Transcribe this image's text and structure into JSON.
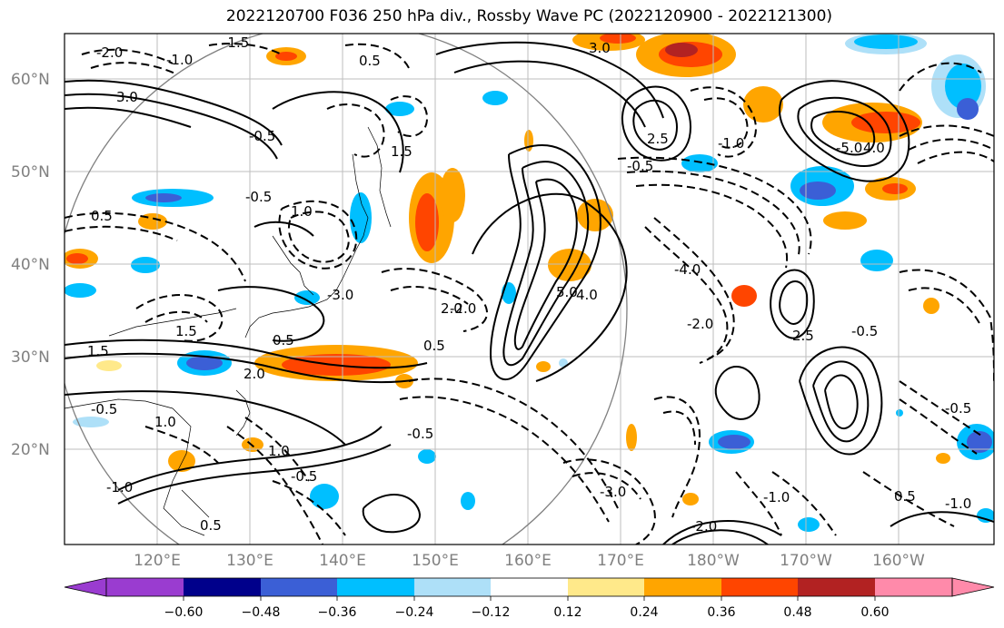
{
  "title": "2022120700 F036 250 hPa div., Rossby Wave PC (2022120900 - 2022121300)",
  "lat_labels": [
    "60°N",
    "50°N",
    "40°N",
    "30°N",
    "20°N"
  ],
  "lon_labels": [
    "120°E",
    "130°E",
    "140°E",
    "150°E",
    "160°E",
    "170°E",
    "180°W",
    "170°W",
    "160°W"
  ],
  "colorbar": {
    "tick_labels": [
      "−0.60",
      "−0.48",
      "−0.36",
      "−0.24",
      "−0.12",
      "0.12",
      "0.24",
      "0.36",
      "0.48",
      "0.60"
    ],
    "colors": [
      "#9a3cd0",
      "#00008b",
      "#3b5fd6",
      "#00bfff",
      "#aee0f8",
      "#ffffff",
      "#ffe98a",
      "#ffa500",
      "#ff4500",
      "#b22222",
      "#ff8aaa"
    ]
  },
  "contour_labels": [
    "-1.5",
    "-2.0",
    "-1.0",
    "0.5",
    "3.0",
    "-0.5",
    "1.5",
    "1.0",
    "2.0",
    "-4.0",
    "-3.0",
    "5.0",
    "4.0",
    "2.5",
    "-5.0"
  ],
  "colors": {
    "grid": "#bdbdbd",
    "frame": "#000000",
    "circle": "#808080"
  }
}
